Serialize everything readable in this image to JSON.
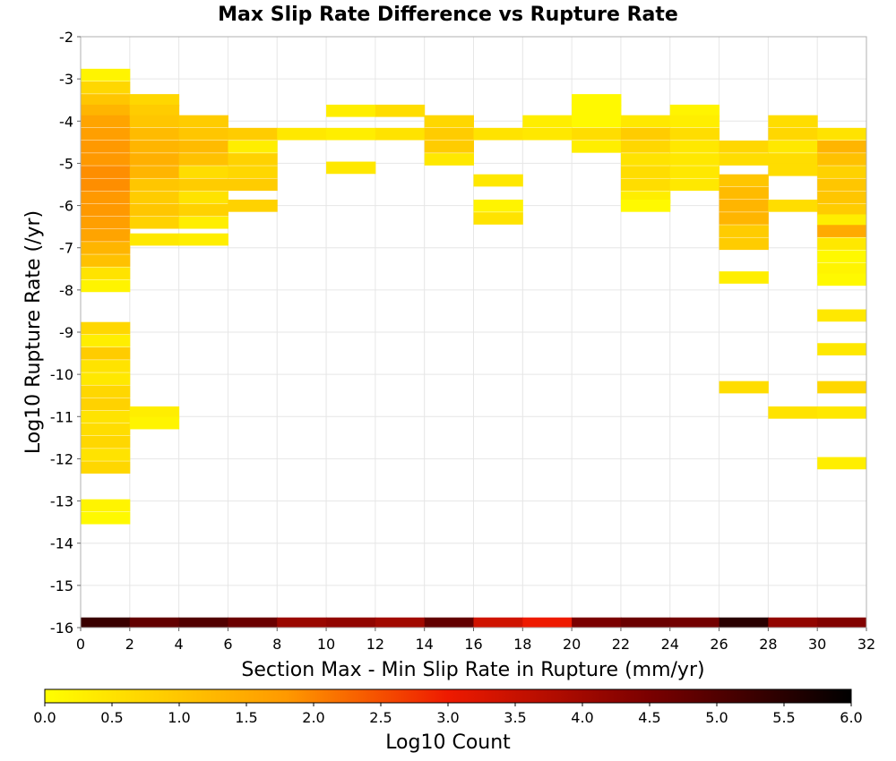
{
  "chart_data": {
    "type": "heatmap",
    "title": "Max Slip Rate Difference vs Rupture Rate",
    "xlabel": "Section Max - Min Slip Rate in Rupture (mm/yr)",
    "ylabel": "Log10 Rupture Rate (/yr)",
    "xlim": [
      0,
      32
    ],
    "ylim": [
      -16,
      -2
    ],
    "x_ticks": [
      "0",
      "2",
      "4",
      "6",
      "8",
      "10",
      "12",
      "14",
      "16",
      "18",
      "20",
      "22",
      "24",
      "26",
      "28",
      "30",
      "32"
    ],
    "y_ticks": [
      "-2",
      "-3",
      "-4",
      "-5",
      "-6",
      "-7",
      "-8",
      "-9",
      "-10",
      "-11",
      "-12",
      "-13",
      "-14",
      "-15",
      "-16"
    ],
    "grid": true,
    "colorbar": {
      "label": "Log10 Count",
      "range": [
        0,
        6
      ],
      "ticks": [
        "0.0",
        "0.5",
        "1.0",
        "1.5",
        "2.0",
        "2.5",
        "3.0",
        "3.5",
        "4.0",
        "4.5",
        "5.0",
        "5.5",
        "6.0"
      ]
    },
    "x_bin_width": 2,
    "y_bin_height": 0.28,
    "cells": [
      [
        0,
        -2.9,
        0.2
      ],
      [
        0,
        -3.2,
        0.7
      ],
      [
        0,
        -3.5,
        1.0
      ],
      [
        0,
        -3.75,
        1.3
      ],
      [
        0,
        -4.0,
        1.6
      ],
      [
        0,
        -4.3,
        1.7
      ],
      [
        0,
        -4.6,
        1.8
      ],
      [
        0,
        -4.9,
        1.8
      ],
      [
        0,
        -5.2,
        1.9
      ],
      [
        0,
        -5.5,
        1.9
      ],
      [
        0,
        -5.8,
        1.8
      ],
      [
        0,
        -6.1,
        1.8
      ],
      [
        0,
        -6.4,
        1.7
      ],
      [
        0,
        -6.7,
        1.6
      ],
      [
        0,
        -7.0,
        1.3
      ],
      [
        0,
        -7.3,
        1.1
      ],
      [
        0,
        -7.6,
        0.5
      ],
      [
        0,
        -7.9,
        0.2
      ],
      [
        0,
        -8.9,
        0.7
      ],
      [
        0,
        -9.2,
        0.3
      ],
      [
        0,
        -9.5,
        0.9
      ],
      [
        0,
        -9.8,
        0.5
      ],
      [
        0,
        -10.1,
        0.4
      ],
      [
        0,
        -10.4,
        0.7
      ],
      [
        0,
        -10.7,
        0.8
      ],
      [
        0,
        -11.0,
        0.5
      ],
      [
        0,
        -11.3,
        0.6
      ],
      [
        0,
        -11.6,
        0.7
      ],
      [
        0,
        -11.9,
        0.5
      ],
      [
        0,
        -12.2,
        0.7
      ],
      [
        0,
        -13.1,
        0.2
      ],
      [
        0,
        -13.4,
        0.1
      ],
      [
        2,
        -3.5,
        0.7
      ],
      [
        2,
        -3.75,
        0.9
      ],
      [
        2,
        -4.0,
        1.0
      ],
      [
        2,
        -4.3,
        1.2
      ],
      [
        2,
        -4.6,
        1.3
      ],
      [
        2,
        -4.9,
        1.4
      ],
      [
        2,
        -5.2,
        1.3
      ],
      [
        2,
        -5.5,
        1.0
      ],
      [
        2,
        -5.8,
        0.9
      ],
      [
        2,
        -6.1,
        1.0
      ],
      [
        2,
        -6.4,
        0.8
      ],
      [
        2,
        -6.8,
        0.4
      ],
      [
        2,
        -10.9,
        0.3
      ],
      [
        2,
        -11.15,
        0.2
      ],
      [
        4,
        -4.0,
        0.9
      ],
      [
        4,
        -4.3,
        1.0
      ],
      [
        4,
        -4.6,
        1.2
      ],
      [
        4,
        -4.9,
        1.1
      ],
      [
        4,
        -5.2,
        0.6
      ],
      [
        4,
        -5.5,
        0.9
      ],
      [
        4,
        -5.8,
        0.5
      ],
      [
        4,
        -6.1,
        0.8
      ],
      [
        4,
        -6.4,
        0.3
      ],
      [
        4,
        -6.8,
        0.3
      ],
      [
        6,
        -4.3,
        0.9
      ],
      [
        6,
        -4.6,
        0.3
      ],
      [
        6,
        -4.9,
        0.8
      ],
      [
        6,
        -5.2,
        0.7
      ],
      [
        6,
        -5.5,
        0.9
      ],
      [
        6,
        -6.0,
        0.8
      ],
      [
        8,
        -4.3,
        0.4
      ],
      [
        10,
        -3.75,
        0.3
      ],
      [
        10,
        -4.3,
        0.3
      ],
      [
        10,
        -5.1,
        0.4
      ],
      [
        12,
        -3.75,
        0.6
      ],
      [
        12,
        -4.3,
        0.5
      ],
      [
        14,
        -4.0,
        0.7
      ],
      [
        14,
        -4.3,
        0.9
      ],
      [
        14,
        -4.6,
        0.9
      ],
      [
        14,
        -4.9,
        0.4
      ],
      [
        16,
        -4.3,
        0.5
      ],
      [
        16,
        -5.4,
        0.4
      ],
      [
        16,
        -6.0,
        0.2
      ],
      [
        16,
        -6.3,
        0.5
      ],
      [
        18,
        -4.0,
        0.3
      ],
      [
        18,
        -4.3,
        0.4
      ],
      [
        20,
        -3.5,
        0.1
      ],
      [
        20,
        -3.75,
        0.1
      ],
      [
        20,
        -4.0,
        0.1
      ],
      [
        20,
        -4.3,
        0.6
      ],
      [
        20,
        -4.6,
        0.3
      ],
      [
        22,
        -4.0,
        0.4
      ],
      [
        22,
        -4.3,
        0.9
      ],
      [
        22,
        -4.6,
        0.7
      ],
      [
        22,
        -4.9,
        0.5
      ],
      [
        22,
        -5.2,
        0.6
      ],
      [
        22,
        -5.5,
        0.6
      ],
      [
        22,
        -5.8,
        0.3
      ],
      [
        22,
        -6.0,
        0.1
      ],
      [
        24,
        -3.75,
        0.2
      ],
      [
        24,
        -4.0,
        0.3
      ],
      [
        24,
        -4.3,
        0.6
      ],
      [
        24,
        -4.6,
        0.4
      ],
      [
        24,
        -4.9,
        0.4
      ],
      [
        24,
        -5.2,
        0.4
      ],
      [
        24,
        -5.5,
        0.4
      ],
      [
        26,
        -4.6,
        0.7
      ],
      [
        26,
        -4.9,
        0.6
      ],
      [
        26,
        -5.4,
        1.0
      ],
      [
        26,
        -5.7,
        1.2
      ],
      [
        26,
        -6.0,
        1.3
      ],
      [
        26,
        -6.3,
        1.3
      ],
      [
        26,
        -6.6,
        0.9
      ],
      [
        26,
        -6.9,
        0.9
      ],
      [
        26,
        -7.7,
        0.3
      ],
      [
        26,
        -10.3,
        0.6
      ],
      [
        28,
        -4.0,
        0.6
      ],
      [
        28,
        -4.3,
        0.7
      ],
      [
        28,
        -4.6,
        0.4
      ],
      [
        28,
        -4.9,
        0.6
      ],
      [
        28,
        -5.15,
        0.6
      ],
      [
        28,
        -6.0,
        0.6
      ],
      [
        28,
        -10.9,
        0.5
      ],
      [
        30,
        -4.3,
        0.5
      ],
      [
        30,
        -4.6,
        1.3
      ],
      [
        30,
        -4.9,
        1.1
      ],
      [
        30,
        -5.2,
        0.8
      ],
      [
        30,
        -5.5,
        1.0
      ],
      [
        30,
        -5.8,
        1.0
      ],
      [
        30,
        -6.1,
        0.9
      ],
      [
        30,
        -6.35,
        0.3
      ],
      [
        30,
        -6.6,
        1.5
      ],
      [
        30,
        -6.9,
        0.4
      ],
      [
        30,
        -7.2,
        0.1
      ],
      [
        30,
        -7.5,
        0.2
      ],
      [
        30,
        -7.75,
        0.1
      ],
      [
        30,
        -8.6,
        0.4
      ],
      [
        30,
        -9.4,
        0.4
      ],
      [
        30,
        -10.3,
        0.7
      ],
      [
        30,
        -10.9,
        0.4
      ],
      [
        30,
        -12.1,
        0.3
      ]
    ],
    "bottom_row": {
      "y": -15.9,
      "values": [
        5.3,
        4.8,
        5.0,
        4.7,
        4.1,
        4.2,
        4.0,
        4.8,
        3.4,
        3.0,
        4.5,
        4.7,
        4.6,
        5.5,
        4.2,
        4.4
      ]
    }
  }
}
